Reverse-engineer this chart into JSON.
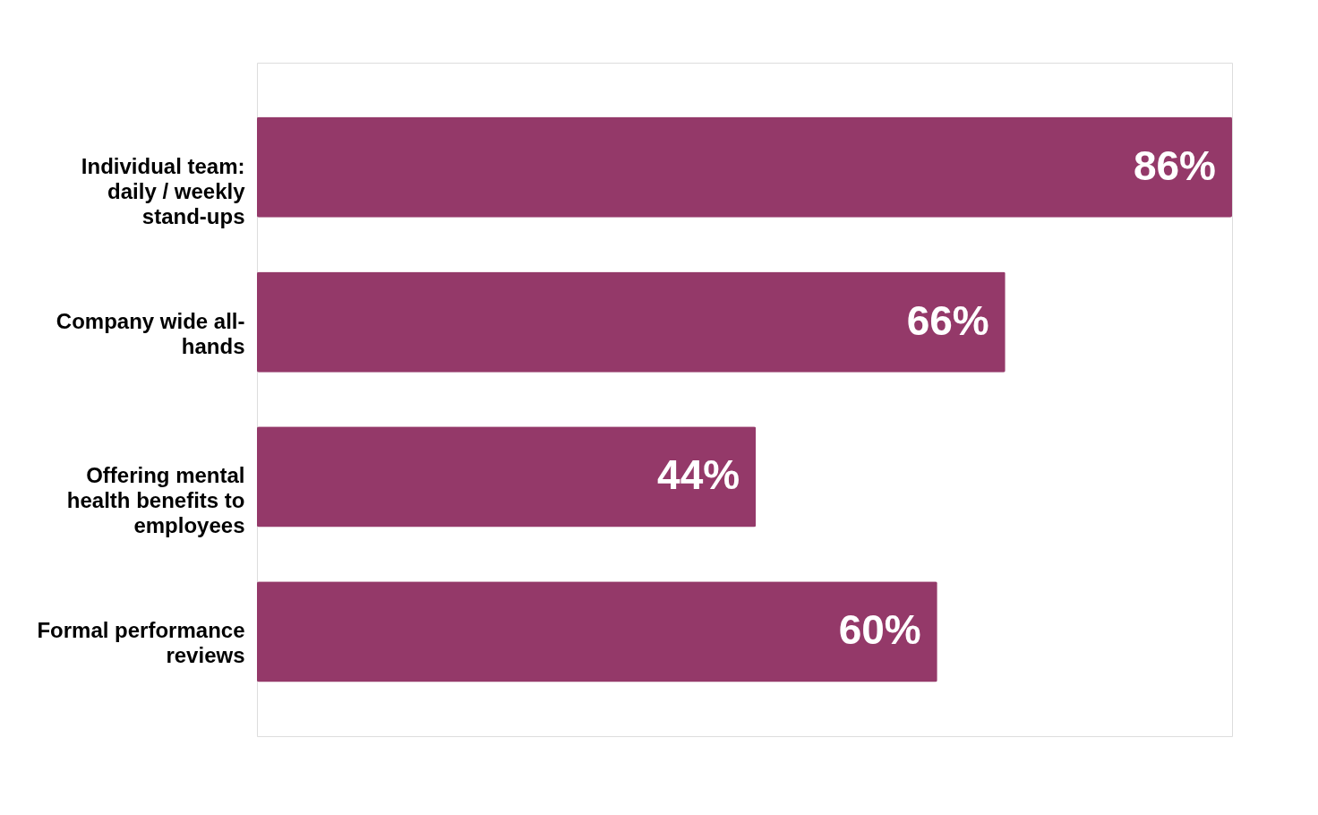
{
  "chart_data": {
    "type": "bar",
    "orientation": "horizontal",
    "categories": [
      "Individual team: daily / weekly stand-ups",
      "Company wide all-hands",
      "Offering mental health benefits to employees",
      "Formal performance reviews"
    ],
    "values": [
      86,
      66,
      44,
      60
    ],
    "value_labels": [
      "86%",
      "66%",
      "44%",
      "60%"
    ],
    "color": "#943969"
  }
}
